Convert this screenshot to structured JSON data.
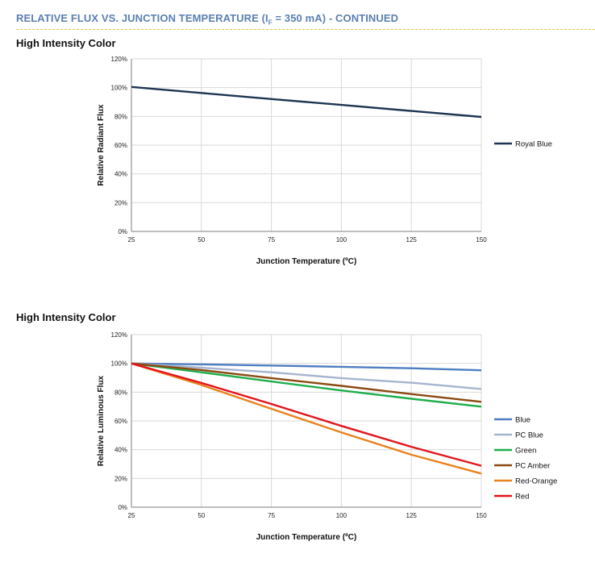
{
  "header": {
    "title_pre": "RELATIVE FLUX VS. JUNCTION TEMPERATURE (I",
    "title_sub": "F",
    "title_post": " = 350 mA) - CONTINUED"
  },
  "chart_data": [
    {
      "type": "line",
      "title": "High Intensity Color",
      "xlabel": "Junction Temperature (ºC)",
      "ylabel": "Relative Radiant Flux",
      "xlim": [
        25,
        150
      ],
      "ylim": [
        0,
        120
      ],
      "xticks": [
        25,
        50,
        75,
        100,
        125,
        150
      ],
      "yticks": [
        0,
        20,
        40,
        60,
        80,
        100,
        120
      ],
      "ytick_suffix": "%",
      "grid": true,
      "legend": "right",
      "x": [
        25,
        50,
        75,
        100,
        125,
        150
      ],
      "series": [
        {
          "name": "Royal Blue",
          "color": "#1f3552",
          "values": [
            100.5,
            96.3,
            92.1,
            88.0,
            83.8,
            79.6
          ]
        }
      ]
    },
    {
      "type": "line",
      "title": "High Intensity Color",
      "xlabel": "Junction Temperature (ºC)",
      "ylabel": "Relative Luminous Flux",
      "xlim": [
        25,
        150
      ],
      "ylim": [
        0,
        120
      ],
      "xticks": [
        25,
        50,
        75,
        100,
        125,
        150
      ],
      "yticks": [
        0,
        20,
        40,
        60,
        80,
        100,
        120
      ],
      "ytick_suffix": "%",
      "grid": true,
      "legend": "right",
      "x": [
        25,
        50,
        75,
        100,
        125,
        150
      ],
      "series": [
        {
          "name": "Blue",
          "color": "#4f7ec1",
          "values": [
            100,
            99.3,
            98.5,
            97.6,
            96.6,
            95.2
          ]
        },
        {
          "name": "PC Blue",
          "color": "#a6b4cf",
          "values": [
            100,
            97,
            93.8,
            89.8,
            86.6,
            82.2
          ]
        },
        {
          "name": "Green",
          "color": "#1fae4c",
          "values": [
            100,
            93.8,
            87.4,
            81.2,
            75.4,
            69.9
          ]
        },
        {
          "name": "PC Amber",
          "color": "#8b4a12",
          "values": [
            100,
            95.4,
            89.8,
            84.4,
            78.7,
            73.3
          ]
        },
        {
          "name": "Red-Orange",
          "color": "#e8821e",
          "values": [
            100,
            85.0,
            68.4,
            52.0,
            36.5,
            23.4
          ]
        },
        {
          "name": "Red",
          "color": "#e3151c",
          "values": [
            100,
            86.4,
            71.8,
            56.5,
            42.0,
            28.8
          ]
        }
      ]
    }
  ]
}
